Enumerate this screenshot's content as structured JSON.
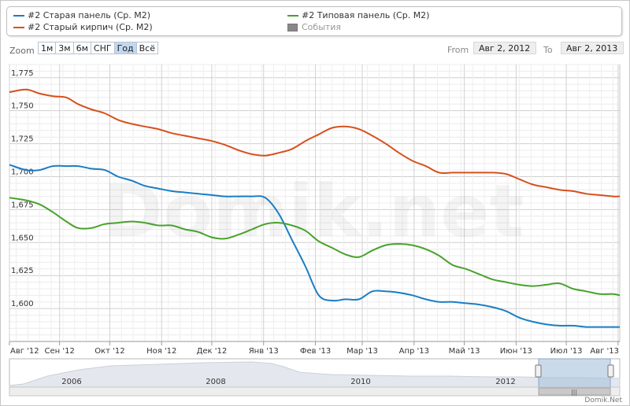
{
  "legend": {
    "items": [
      {
        "label": "#2 Старая панель (Ср. М2)",
        "color": "#1a7dc4"
      },
      {
        "label": "#2 Старый кирпич (Ср. М2)",
        "color": "#d7501c"
      },
      {
        "label": "#2 Типовая панель (Ср. М2)",
        "color": "#47a22b"
      },
      {
        "label": "События",
        "color": "#888888"
      }
    ]
  },
  "zoom": {
    "label": "Zoom",
    "buttons": [
      "1м",
      "3м",
      "6м",
      "СНГ",
      "Год",
      "Всё"
    ],
    "active": "Год"
  },
  "range": {
    "from_label": "From",
    "from_value": "Авг 2, 2012",
    "to_label": "To",
    "to_value": "Авг 2, 2013"
  },
  "watermark": "Domik.net",
  "credit": "Domik.Net",
  "navigator": {
    "year_labels": [
      "2006",
      "2008",
      "2010",
      "2012"
    ]
  },
  "chart_data": {
    "type": "line",
    "title": "",
    "xlabel": "",
    "ylabel": "",
    "ylim": [
      1575,
      1785
    ],
    "yticks": [
      1600,
      1625,
      1650,
      1675,
      1700,
      1725,
      1750,
      1775
    ],
    "ytick_labels": [
      "1,600",
      "1,625",
      "1,650",
      "1,675",
      "1,700",
      "1,725",
      "1,750",
      "1,775"
    ],
    "xticks": [
      "Авг '12",
      "Сен '12",
      "Окт '12",
      "Ноя '12",
      "Дек '12",
      "Янв '13",
      "Фев '13",
      "Мар '13",
      "Апр '13",
      "Май '13",
      "Июн '13",
      "Июл '13",
      "Авг '13"
    ],
    "x": [
      "2012-08-02",
      "2012-08-12",
      "2012-08-20",
      "2012-08-28",
      "2012-09-05",
      "2012-09-12",
      "2012-09-20",
      "2012-09-28",
      "2012-10-06",
      "2012-10-14",
      "2012-10-22",
      "2012-10-30",
      "2012-11-07",
      "2012-11-15",
      "2012-11-23",
      "2012-12-01",
      "2012-12-09",
      "2012-12-17",
      "2012-12-25",
      "2013-01-02",
      "2013-01-10",
      "2013-01-18",
      "2013-01-26",
      "2013-02-03",
      "2013-02-11",
      "2013-02-19",
      "2013-02-27",
      "2013-03-07",
      "2013-03-15",
      "2013-03-23",
      "2013-03-31",
      "2013-04-08",
      "2013-04-16",
      "2013-04-24",
      "2013-05-02",
      "2013-05-10",
      "2013-05-18",
      "2013-05-26",
      "2013-06-03",
      "2013-06-11",
      "2013-06-19",
      "2013-06-27",
      "2013-07-05",
      "2013-07-13",
      "2013-07-21",
      "2013-07-29",
      "2013-08-02"
    ],
    "series": [
      {
        "name": "#2 Старая панель (Ср. М2)",
        "color": "#1a7dc4",
        "values": [
          1709,
          1705,
          1705,
          1708,
          1708,
          1708,
          1706,
          1705,
          1700,
          1697,
          1693,
          1691,
          1689,
          1688,
          1687,
          1686,
          1685,
          1685,
          1685,
          1684,
          1672,
          1652,
          1632,
          1610,
          1606,
          1607,
          1607,
          1613,
          1613,
          1612,
          1610,
          1607,
          1605,
          1605,
          1604,
          1603,
          1601,
          1598,
          1593,
          1590,
          1588,
          1587,
          1587,
          1586,
          1586,
          1586,
          1586
        ]
      },
      {
        "name": "#2 Старый кирпич (Ср. М2)",
        "color": "#d7501c",
        "values": [
          1764,
          1766,
          1763,
          1761,
          1760,
          1755,
          1751,
          1748,
          1743,
          1740,
          1738,
          1736,
          1733,
          1731,
          1729,
          1727,
          1724,
          1720,
          1717,
          1716,
          1718,
          1721,
          1727,
          1732,
          1737,
          1738,
          1736,
          1731,
          1725,
          1718,
          1712,
          1708,
          1703,
          1703,
          1703,
          1703,
          1703,
          1702,
          1698,
          1694,
          1692,
          1690,
          1689,
          1687,
          1686,
          1685,
          1685
        ]
      },
      {
        "name": "#2 Типовая панель (Ср. М2)",
        "color": "#47a22b",
        "values": [
          1684,
          1682,
          1679,
          1673,
          1666,
          1661,
          1661,
          1664,
          1665,
          1666,
          1665,
          1663,
          1663,
          1660,
          1658,
          1654,
          1653,
          1656,
          1660,
          1664,
          1665,
          1663,
          1659,
          1651,
          1646,
          1641,
          1639,
          1644,
          1648,
          1649,
          1648,
          1645,
          1640,
          1633,
          1630,
          1626,
          1622,
          1620,
          1618,
          1617,
          1618,
          1619,
          1615,
          1613,
          1611,
          1611,
          1610
        ]
      }
    ]
  }
}
